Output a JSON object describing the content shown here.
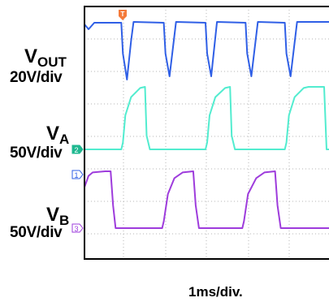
{
  "labels": {
    "vout_name": "V",
    "vout_sub": "OUT",
    "vout_scale": "20V/div",
    "va_name": "V",
    "va_sub": "A",
    "va_scale": "50V/div",
    "vb_name": "V",
    "vb_sub": "B",
    "vb_scale": "50V/div",
    "time_scale": "1ms/div."
  },
  "chart_data": {
    "type": "line",
    "title": "",
    "xlabel": "1ms/div.",
    "x_unit": "ms",
    "xlim": [
      0,
      3
    ],
    "grid": true,
    "trigger_marker": "T",
    "series": [
      {
        "name": "VOUT",
        "channel": "1",
        "scale": "20V/div",
        "color": "#2f5fe6",
        "x": [
          0,
          0.05,
          0.12,
          0.45,
          0.47,
          0.52,
          0.57,
          0.6,
          0.97,
          0.99,
          1.04,
          1.12,
          1.48,
          1.5,
          1.55,
          1.62,
          1.97,
          1.99,
          2.04,
          2.12,
          2.45,
          2.47,
          2.52,
          2.6,
          3.0
        ],
        "y_div": [
          0.2,
          0.5,
          0.1,
          0.1,
          2.0,
          3.6,
          1.2,
          0.05,
          0.1,
          2.0,
          3.4,
          0.05,
          0.1,
          2.0,
          3.4,
          0.05,
          0.1,
          2.0,
          3.4,
          0.05,
          0.1,
          2.0,
          3.4,
          0.05,
          0.05
        ]
      },
      {
        "name": "VA",
        "channel": "2",
        "scale": "50V/div",
        "color": "#52eccf",
        "x": [
          0,
          0.45,
          0.47,
          0.5,
          0.57,
          0.68,
          0.74,
          0.76,
          0.8,
          1.48,
          1.5,
          1.53,
          1.6,
          1.72,
          1.78,
          1.8,
          1.84,
          2.45,
          2.47,
          2.5,
          2.57,
          2.68,
          2.74,
          2.76,
          2.8,
          2.93,
          2.96,
          3.0
        ],
        "y_div": [
          0,
          0,
          0.3,
          1.5,
          2.3,
          2.7,
          2.75,
          0.6,
          0,
          0,
          0.3,
          1.5,
          2.3,
          2.7,
          2.75,
          0.6,
          0,
          0,
          0.3,
          1.5,
          2.3,
          2.7,
          2.75,
          2.75,
          2.75,
          2.75,
          0,
          0
        ]
      },
      {
        "name": "VB",
        "channel": "3",
        "scale": "50V/div",
        "color": "#9e3cdc",
        "x": [
          0,
          0.05,
          0.1,
          0.25,
          0.32,
          0.35,
          0.38,
          0.95,
          0.97,
          1.02,
          1.1,
          1.2,
          1.33,
          1.36,
          1.4,
          1.93,
          1.95,
          2.0,
          2.1,
          2.2,
          2.33,
          2.36,
          2.4,
          3.0
        ],
        "y_div": [
          1.8,
          2.3,
          2.45,
          2.5,
          2.5,
          1.0,
          0,
          0,
          0.3,
          1.5,
          2.2,
          2.45,
          2.5,
          1.0,
          0,
          0,
          0.3,
          1.5,
          2.2,
          2.45,
          2.5,
          1.0,
          0,
          0
        ]
      }
    ]
  }
}
